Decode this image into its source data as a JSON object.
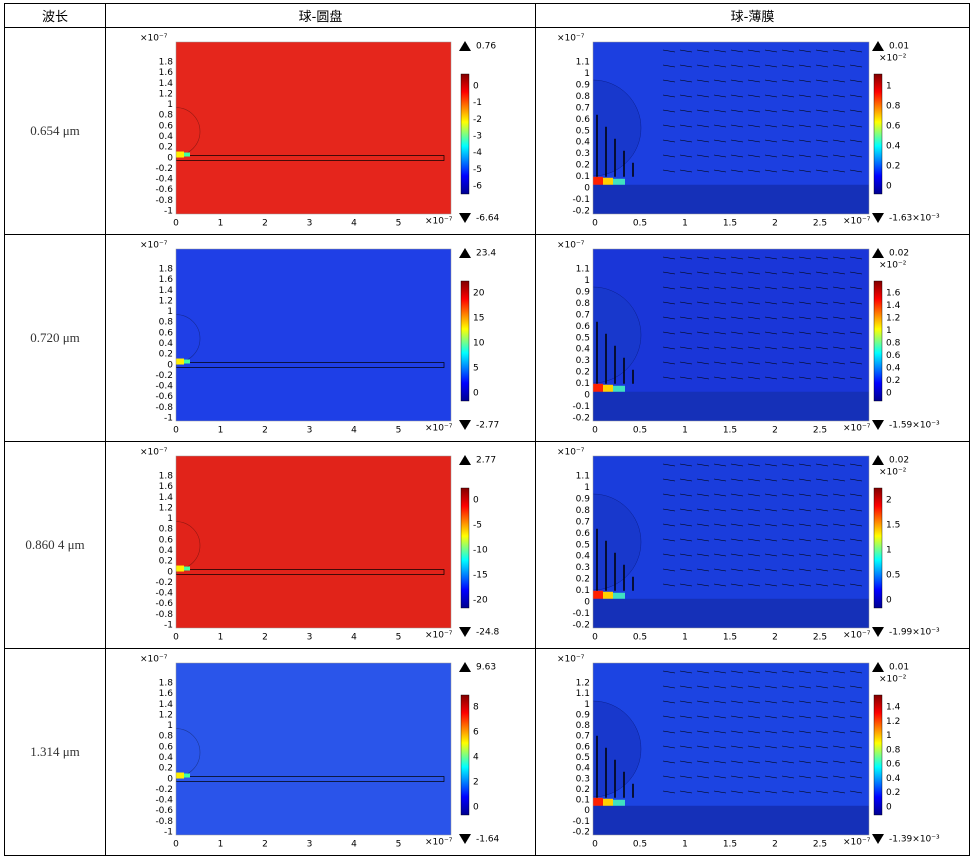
{
  "header": [
    "波长",
    "球-圆盘",
    "球-薄膜"
  ],
  "rows": [
    {
      "wavelength": "0.654 μm",
      "disk": {
        "exponent": "×10⁻⁷",
        "yticks": [
          "1.8",
          "1.6",
          "1.4",
          "1.2",
          "1",
          "0.8",
          "0.6",
          "0.4",
          "0.2",
          "0",
          "-0.2",
          "-0.4",
          "-0.6",
          "-0.8",
          "-1"
        ],
        "xticks": [
          "0",
          "1",
          "2",
          "3",
          "4",
          "5"
        ],
        "cmax": "0.76",
        "cmin": "-6.64",
        "cticks": [
          "0",
          "-1",
          "-2",
          "-3",
          "-4",
          "-5",
          "-6"
        ],
        "color": "#e5261c"
      },
      "film": {
        "exponent": "×10⁻⁷",
        "yticks": [
          "1.1",
          "1",
          "0.9",
          "0.8",
          "0.7",
          "0.6",
          "0.5",
          "0.4",
          "0.3",
          "0.2",
          "0.1",
          "0",
          "-0.1",
          "-0.2"
        ],
        "xticks": [
          "0",
          "0.5",
          "1",
          "1.5",
          "2",
          "2.5"
        ],
        "cmax": "0.01",
        "cmult": "×10⁻²",
        "cmin": "-1.63×10⁻³",
        "cticks": [
          "1",
          "0.8",
          "0.6",
          "0.4",
          "0.2",
          "0"
        ],
        "color": "#1c3fe0"
      }
    },
    {
      "wavelength": "0.720 μm",
      "disk": {
        "exponent": "×10⁻⁷",
        "yticks": [
          "1.8",
          "1.6",
          "1.4",
          "1.2",
          "1",
          "0.8",
          "0.6",
          "0.4",
          "0.2",
          "0",
          "-0.2",
          "-0.4",
          "-0.6",
          "-0.8",
          "-1"
        ],
        "xticks": [
          "0",
          "1",
          "2",
          "3",
          "4",
          "5"
        ],
        "cmax": "23.4",
        "cmin": "-2.77",
        "cticks": [
          "20",
          "15",
          "10",
          "5",
          "0"
        ],
        "color": "#1f3fe6"
      },
      "film": {
        "exponent": "×10⁻⁷",
        "yticks": [
          "1.1",
          "1",
          "0.9",
          "0.8",
          "0.7",
          "0.6",
          "0.5",
          "0.4",
          "0.3",
          "0.2",
          "0.1",
          "0",
          "-0.1",
          "-0.2"
        ],
        "xticks": [
          "0",
          "0.5",
          "1",
          "1.5",
          "2",
          "2.5"
        ],
        "cmax": "0.02",
        "cmult": "×10⁻²",
        "cmin": "-1.59×10⁻³",
        "cticks": [
          "1.6",
          "1.4",
          "1.2",
          "1",
          "0.8",
          "0.6",
          "0.4",
          "0.2",
          "0"
        ],
        "color": "#1a36d8"
      }
    },
    {
      "wavelength": "0.860 4 μm",
      "disk": {
        "exponent": "×10⁻⁷",
        "yticks": [
          "1.8",
          "1.6",
          "1.4",
          "1.2",
          "1",
          "0.8",
          "0.6",
          "0.4",
          "0.2",
          "0",
          "-0.2",
          "-0.4",
          "-0.6",
          "-0.8",
          "-1"
        ],
        "xticks": [
          "0",
          "1",
          "2",
          "3",
          "4",
          "5"
        ],
        "cmax": "2.77",
        "cmin": "-24.8",
        "cticks": [
          "0",
          "-5",
          "-10",
          "-15",
          "-20"
        ],
        "color": "#e1231a"
      },
      "film": {
        "exponent": "×10⁻⁷",
        "yticks": [
          "1.1",
          "1",
          "0.9",
          "0.8",
          "0.7",
          "0.6",
          "0.5",
          "0.4",
          "0.3",
          "0.2",
          "0.1",
          "0",
          "-0.1",
          "-0.2"
        ],
        "xticks": [
          "0",
          "0.5",
          "1",
          "1.5",
          "2",
          "2.5"
        ],
        "cmax": "0.02",
        "cmult": "×10⁻²",
        "cmin": "-1.99×10⁻³",
        "cticks": [
          "2",
          "1.5",
          "1",
          "0.5",
          "0"
        ],
        "color": "#1a3ddc"
      }
    },
    {
      "wavelength": "1.314 μm",
      "disk": {
        "exponent": "×10⁻⁷",
        "yticks": [
          "1.8",
          "1.6",
          "1.4",
          "1.2",
          "1",
          "0.8",
          "0.6",
          "0.4",
          "0.2",
          "0",
          "-0.2",
          "-0.4",
          "-0.6",
          "-0.8",
          "-1"
        ],
        "xticks": [
          "0",
          "1",
          "2",
          "3",
          "4",
          "5"
        ],
        "cmax": "9.63",
        "cmin": "-1.64",
        "cticks": [
          "8",
          "6",
          "4",
          "2",
          "0"
        ],
        "color": "#2a55ea"
      },
      "film": {
        "exponent": "×10⁻⁷",
        "yticks": [
          "1.2",
          "1.1",
          "1",
          "0.9",
          "0.8",
          "0.7",
          "0.6",
          "0.5",
          "0.4",
          "0.3",
          "0.2",
          "0.1",
          "0",
          "-0.1",
          "-0.2"
        ],
        "xticks": [
          "0",
          "0.5",
          "1",
          "1.5",
          "2",
          "2.5"
        ],
        "cmax": "0.01",
        "cmult": "×10⁻²",
        "cmin": "-1.39×10⁻³",
        "cticks": [
          "1.4",
          "1.2",
          "1",
          "0.8",
          "0.6",
          "0.4",
          "0.2",
          "0"
        ],
        "color": "#1c44e2"
      }
    }
  ]
}
